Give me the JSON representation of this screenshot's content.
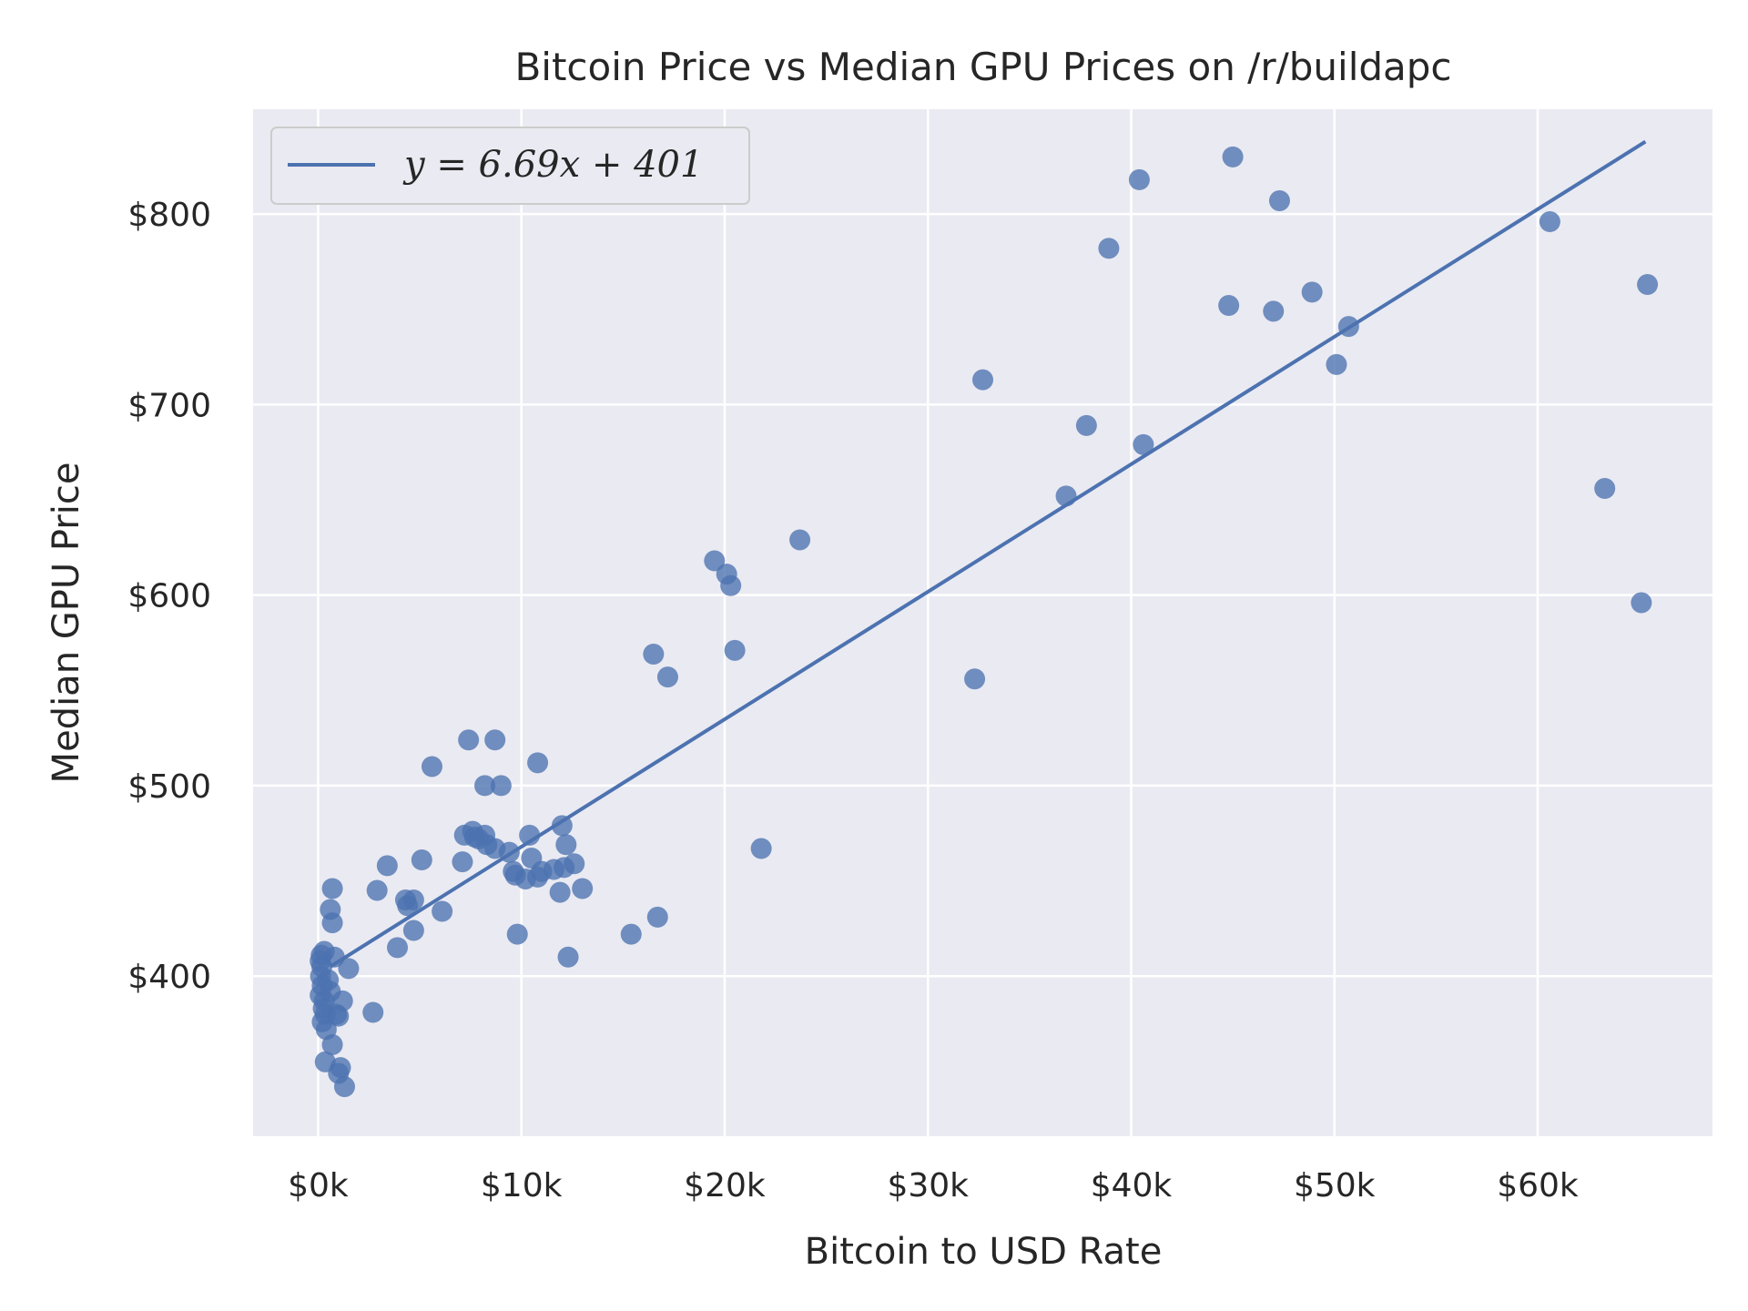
{
  "chart_data": {
    "type": "scatter",
    "title": "Bitcoin Price vs Median GPU Prices on /r/buildapc",
    "xlabel": "Bitcoin to USD Rate",
    "ylabel": "Median GPU Price",
    "xlim": [
      -3200,
      68600
    ],
    "ylim": [
      316,
      855
    ],
    "x_ticks": [
      0,
      10000,
      20000,
      30000,
      40000,
      50000,
      60000
    ],
    "x_tick_labels": [
      "$0k",
      "$10k",
      "$20k",
      "$30k",
      "$40k",
      "$50k",
      "$60k"
    ],
    "y_ticks": [
      400,
      500,
      600,
      700,
      800
    ],
    "y_tick_labels": [
      "$400",
      "$500",
      "$600",
      "$700",
      "$800"
    ],
    "grid": true,
    "legend_position": "top-left",
    "colors": {
      "background": "#EAEAF2",
      "grid": "#FFFFFF",
      "series": "#4C72B0"
    },
    "series": [
      {
        "name": "y = 6.69x + 401",
        "type": "line",
        "points": [
          [
            600,
            405
          ],
          [
            65300,
            838
          ]
        ]
      },
      {
        "type": "scatter",
        "points": [
          [
            100,
            408
          ],
          [
            150,
            411
          ],
          [
            180,
            405
          ],
          [
            120,
            400
          ],
          [
            200,
            395
          ],
          [
            100,
            390
          ],
          [
            300,
            387
          ],
          [
            250,
            383
          ],
          [
            350,
            380
          ],
          [
            200,
            376
          ],
          [
            400,
            372
          ],
          [
            300,
            413
          ],
          [
            500,
            398
          ],
          [
            600,
            392
          ],
          [
            700,
            364
          ],
          [
            350,
            355
          ],
          [
            800,
            410
          ],
          [
            900,
            380
          ],
          [
            1000,
            379
          ],
          [
            1200,
            387
          ],
          [
            1100,
            352
          ],
          [
            1000,
            349
          ],
          [
            1300,
            342
          ],
          [
            1500,
            404
          ],
          [
            700,
            446
          ],
          [
            600,
            435
          ],
          [
            700,
            428
          ],
          [
            2700,
            381
          ],
          [
            2900,
            445
          ],
          [
            3400,
            458
          ],
          [
            3900,
            415
          ],
          [
            4300,
            440
          ],
          [
            4400,
            437
          ],
          [
            4700,
            440
          ],
          [
            4700,
            424
          ],
          [
            5100,
            461
          ],
          [
            5600,
            510
          ],
          [
            6100,
            434
          ],
          [
            7100,
            460
          ],
          [
            7200,
            474
          ],
          [
            7600,
            476
          ],
          [
            7700,
            473
          ],
          [
            7900,
            472
          ],
          [
            8200,
            474
          ],
          [
            8300,
            469
          ],
          [
            8700,
            467
          ],
          [
            7400,
            524
          ],
          [
            8700,
            524
          ],
          [
            8200,
            500
          ],
          [
            9000,
            500
          ],
          [
            9400,
            465
          ],
          [
            9600,
            455
          ],
          [
            9700,
            453
          ],
          [
            9800,
            422
          ],
          [
            10200,
            451
          ],
          [
            10400,
            474
          ],
          [
            10500,
            462
          ],
          [
            10800,
            452
          ],
          [
            11000,
            455
          ],
          [
            10800,
            512
          ],
          [
            11600,
            456
          ],
          [
            11900,
            444
          ],
          [
            12100,
            457
          ],
          [
            12000,
            479
          ],
          [
            12200,
            469
          ],
          [
            12300,
            410
          ],
          [
            12600,
            459
          ],
          [
            13000,
            446
          ],
          [
            15400,
            422
          ],
          [
            16500,
            569
          ],
          [
            16700,
            431
          ],
          [
            17200,
            557
          ],
          [
            19500,
            618
          ],
          [
            20100,
            611
          ],
          [
            20300,
            605
          ],
          [
            20500,
            571
          ],
          [
            21800,
            467
          ],
          [
            23700,
            629
          ],
          [
            32300,
            556
          ],
          [
            32700,
            713
          ],
          [
            36800,
            652
          ],
          [
            37800,
            689
          ],
          [
            38900,
            782
          ],
          [
            40400,
            818
          ],
          [
            40600,
            679
          ],
          [
            44800,
            752
          ],
          [
            45000,
            830
          ],
          [
            47000,
            749
          ],
          [
            47300,
            807
          ],
          [
            48900,
            759
          ],
          [
            50100,
            721
          ],
          [
            50700,
            741
          ],
          [
            60600,
            796
          ],
          [
            63300,
            656
          ],
          [
            65100,
            596
          ],
          [
            65400,
            763
          ]
        ]
      }
    ]
  }
}
